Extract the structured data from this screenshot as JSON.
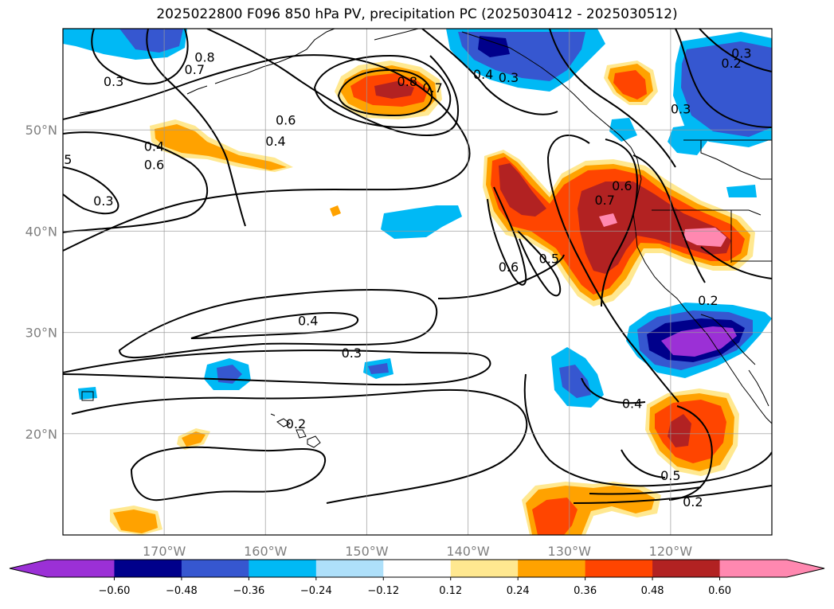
{
  "title": "2025022800 F096 850 hPa PV, precipitation PC (2025030412 - 2025030512)",
  "map": {
    "extent": {
      "lon_min": -180,
      "lon_max": -110,
      "lat_min": 10,
      "lat_max": 60
    },
    "lon_ticks": [
      {
        "lon": -170,
        "label": "170°W"
      },
      {
        "lon": -160,
        "label": "160°W"
      },
      {
        "lon": -150,
        "label": "150°W"
      },
      {
        "lon": -140,
        "label": "140°W"
      },
      {
        "lon": -130,
        "label": "130°W"
      },
      {
        "lon": -120,
        "label": "120°W"
      }
    ],
    "lat_ticks": [
      {
        "lat": 50,
        "label": "50°N"
      },
      {
        "lat": 40,
        "label": "40°N"
      },
      {
        "lat": 30,
        "label": "30°N"
      },
      {
        "lat": 20,
        "label": "20°N"
      }
    ],
    "gridlines": true
  },
  "colorbar": {
    "colors": [
      "#9b30d6",
      "#00008b",
      "#3657d0",
      "#00b9f5",
      "#aee0fa",
      "#ffffff",
      "#ffe890",
      "#ffa200",
      "#ff4500",
      "#b22222",
      "#ff88b0"
    ],
    "tick_labels": [
      "−0.60",
      "−0.48",
      "−0.36",
      "−0.24",
      "−0.12",
      "0.12",
      "0.24",
      "0.36",
      "0.48",
      "0.60"
    ]
  },
  "contour_labels": [
    {
      "text": "0.8",
      "lon": -166.0,
      "lat": 57.2
    },
    {
      "text": "0.7",
      "lon": -167.0,
      "lat": 56.0
    },
    {
      "text": "0.3",
      "lon": -175.0,
      "lat": 54.8
    },
    {
      "text": "0.6",
      "lon": -158.0,
      "lat": 51.0
    },
    {
      "text": "0.4",
      "lon": -171.0,
      "lat": 48.4
    },
    {
      "text": "0.6",
      "lon": -171.0,
      "lat": 46.6
    },
    {
      "text": "0.4",
      "lon": -159.0,
      "lat": 48.9
    },
    {
      "text": "0.3",
      "lon": -176.0,
      "lat": 43.0
    },
    {
      "text": "5",
      "lon": -179.5,
      "lat": 47.1
    },
    {
      "text": "0.8",
      "lon": -146.0,
      "lat": 54.8
    },
    {
      "text": "0.7",
      "lon": -143.5,
      "lat": 54.2
    },
    {
      "text": "0.4",
      "lon": -138.5,
      "lat": 55.5
    },
    {
      "text": "0.3",
      "lon": -136.0,
      "lat": 55.2
    },
    {
      "text": "0.3",
      "lon": -119.0,
      "lat": 52.1
    },
    {
      "text": "0.3",
      "lon": -113.0,
      "lat": 57.6
    },
    {
      "text": "0.2",
      "lon": -114.0,
      "lat": 56.6
    },
    {
      "text": "0.7",
      "lon": -126.5,
      "lat": 43.1
    },
    {
      "text": "0.6",
      "lon": -124.8,
      "lat": 44.5
    },
    {
      "text": "0.6",
      "lon": -136.0,
      "lat": 36.5
    },
    {
      "text": "0.5",
      "lon": -132.0,
      "lat": 37.3
    },
    {
      "text": "0.4",
      "lon": -155.8,
      "lat": 31.2
    },
    {
      "text": "0.3",
      "lon": -151.5,
      "lat": 28.0
    },
    {
      "text": "0.2",
      "lon": -116.3,
      "lat": 33.2
    },
    {
      "text": "0.4",
      "lon": -123.8,
      "lat": 23.0
    },
    {
      "text": "0.5",
      "lon": -120.0,
      "lat": 15.9
    },
    {
      "text": "0.2",
      "lon": -117.8,
      "lat": 13.3
    },
    {
      "text": "0.2",
      "lon": -157.0,
      "lat": 21.0
    }
  ]
}
